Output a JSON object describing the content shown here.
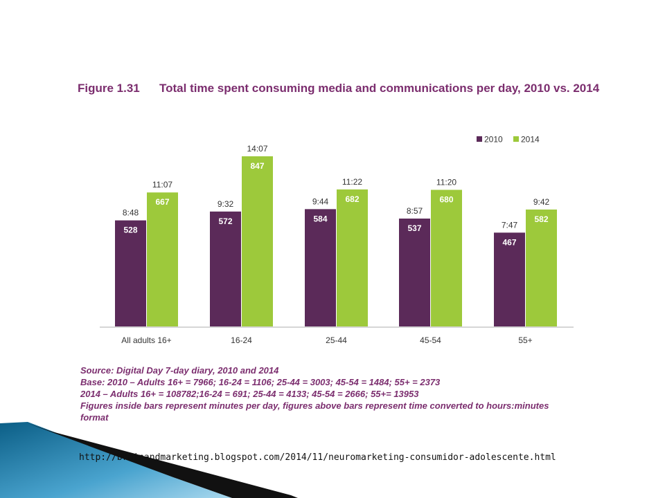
{
  "figure": {
    "number": "Figure 1.31",
    "title": "Total time spent consuming media and communications per day, 2010 vs. 2014"
  },
  "chart_data": {
    "type": "bar",
    "categories": [
      "All adults 16+",
      "16-24",
      "25-44",
      "45-54",
      "55+"
    ],
    "series": [
      {
        "name": "2010",
        "color": "#5b2a59",
        "values": [
          528,
          572,
          584,
          537,
          467
        ],
        "above_labels": [
          "8:48",
          "9:32",
          "9:44",
          "8:57",
          "7:47"
        ]
      },
      {
        "name": "2014",
        "color": "#9dc93b",
        "values": [
          667,
          847,
          682,
          680,
          582
        ],
        "above_labels": [
          "11:07",
          "14:07",
          "11:22",
          "11:20",
          "9:42"
        ]
      }
    ],
    "ylim": [
      0,
      960
    ],
    "grid": false,
    "legend_position": "top-right"
  },
  "notes": {
    "source": "Source: Digital Day 7-day diary, 2010 and 2014",
    "base_2010": "Base: 2010 – Adults 16+ = 7966; 16-24 = 1106; 25-44 = 3003; 45-54 = 1484; 55+ = 2373",
    "base_2014": "2014 – Adults 16+ = 108782;16-24 = 691; 25-44 = 4133; 45-54 = 2666; 55+= 13953",
    "figures_note": "Figures inside bars represent minutes per day, figures above bars represent time converted to hours:minutes format"
  },
  "source_url": "http://brainandmarketing.blogspot.com/2014/11/neuromarketing-consumidor-adolescente.html",
  "colors": {
    "title": "#7b2d6e",
    "bar_2010": "#5b2a59",
    "bar_2014": "#9dc93b"
  }
}
